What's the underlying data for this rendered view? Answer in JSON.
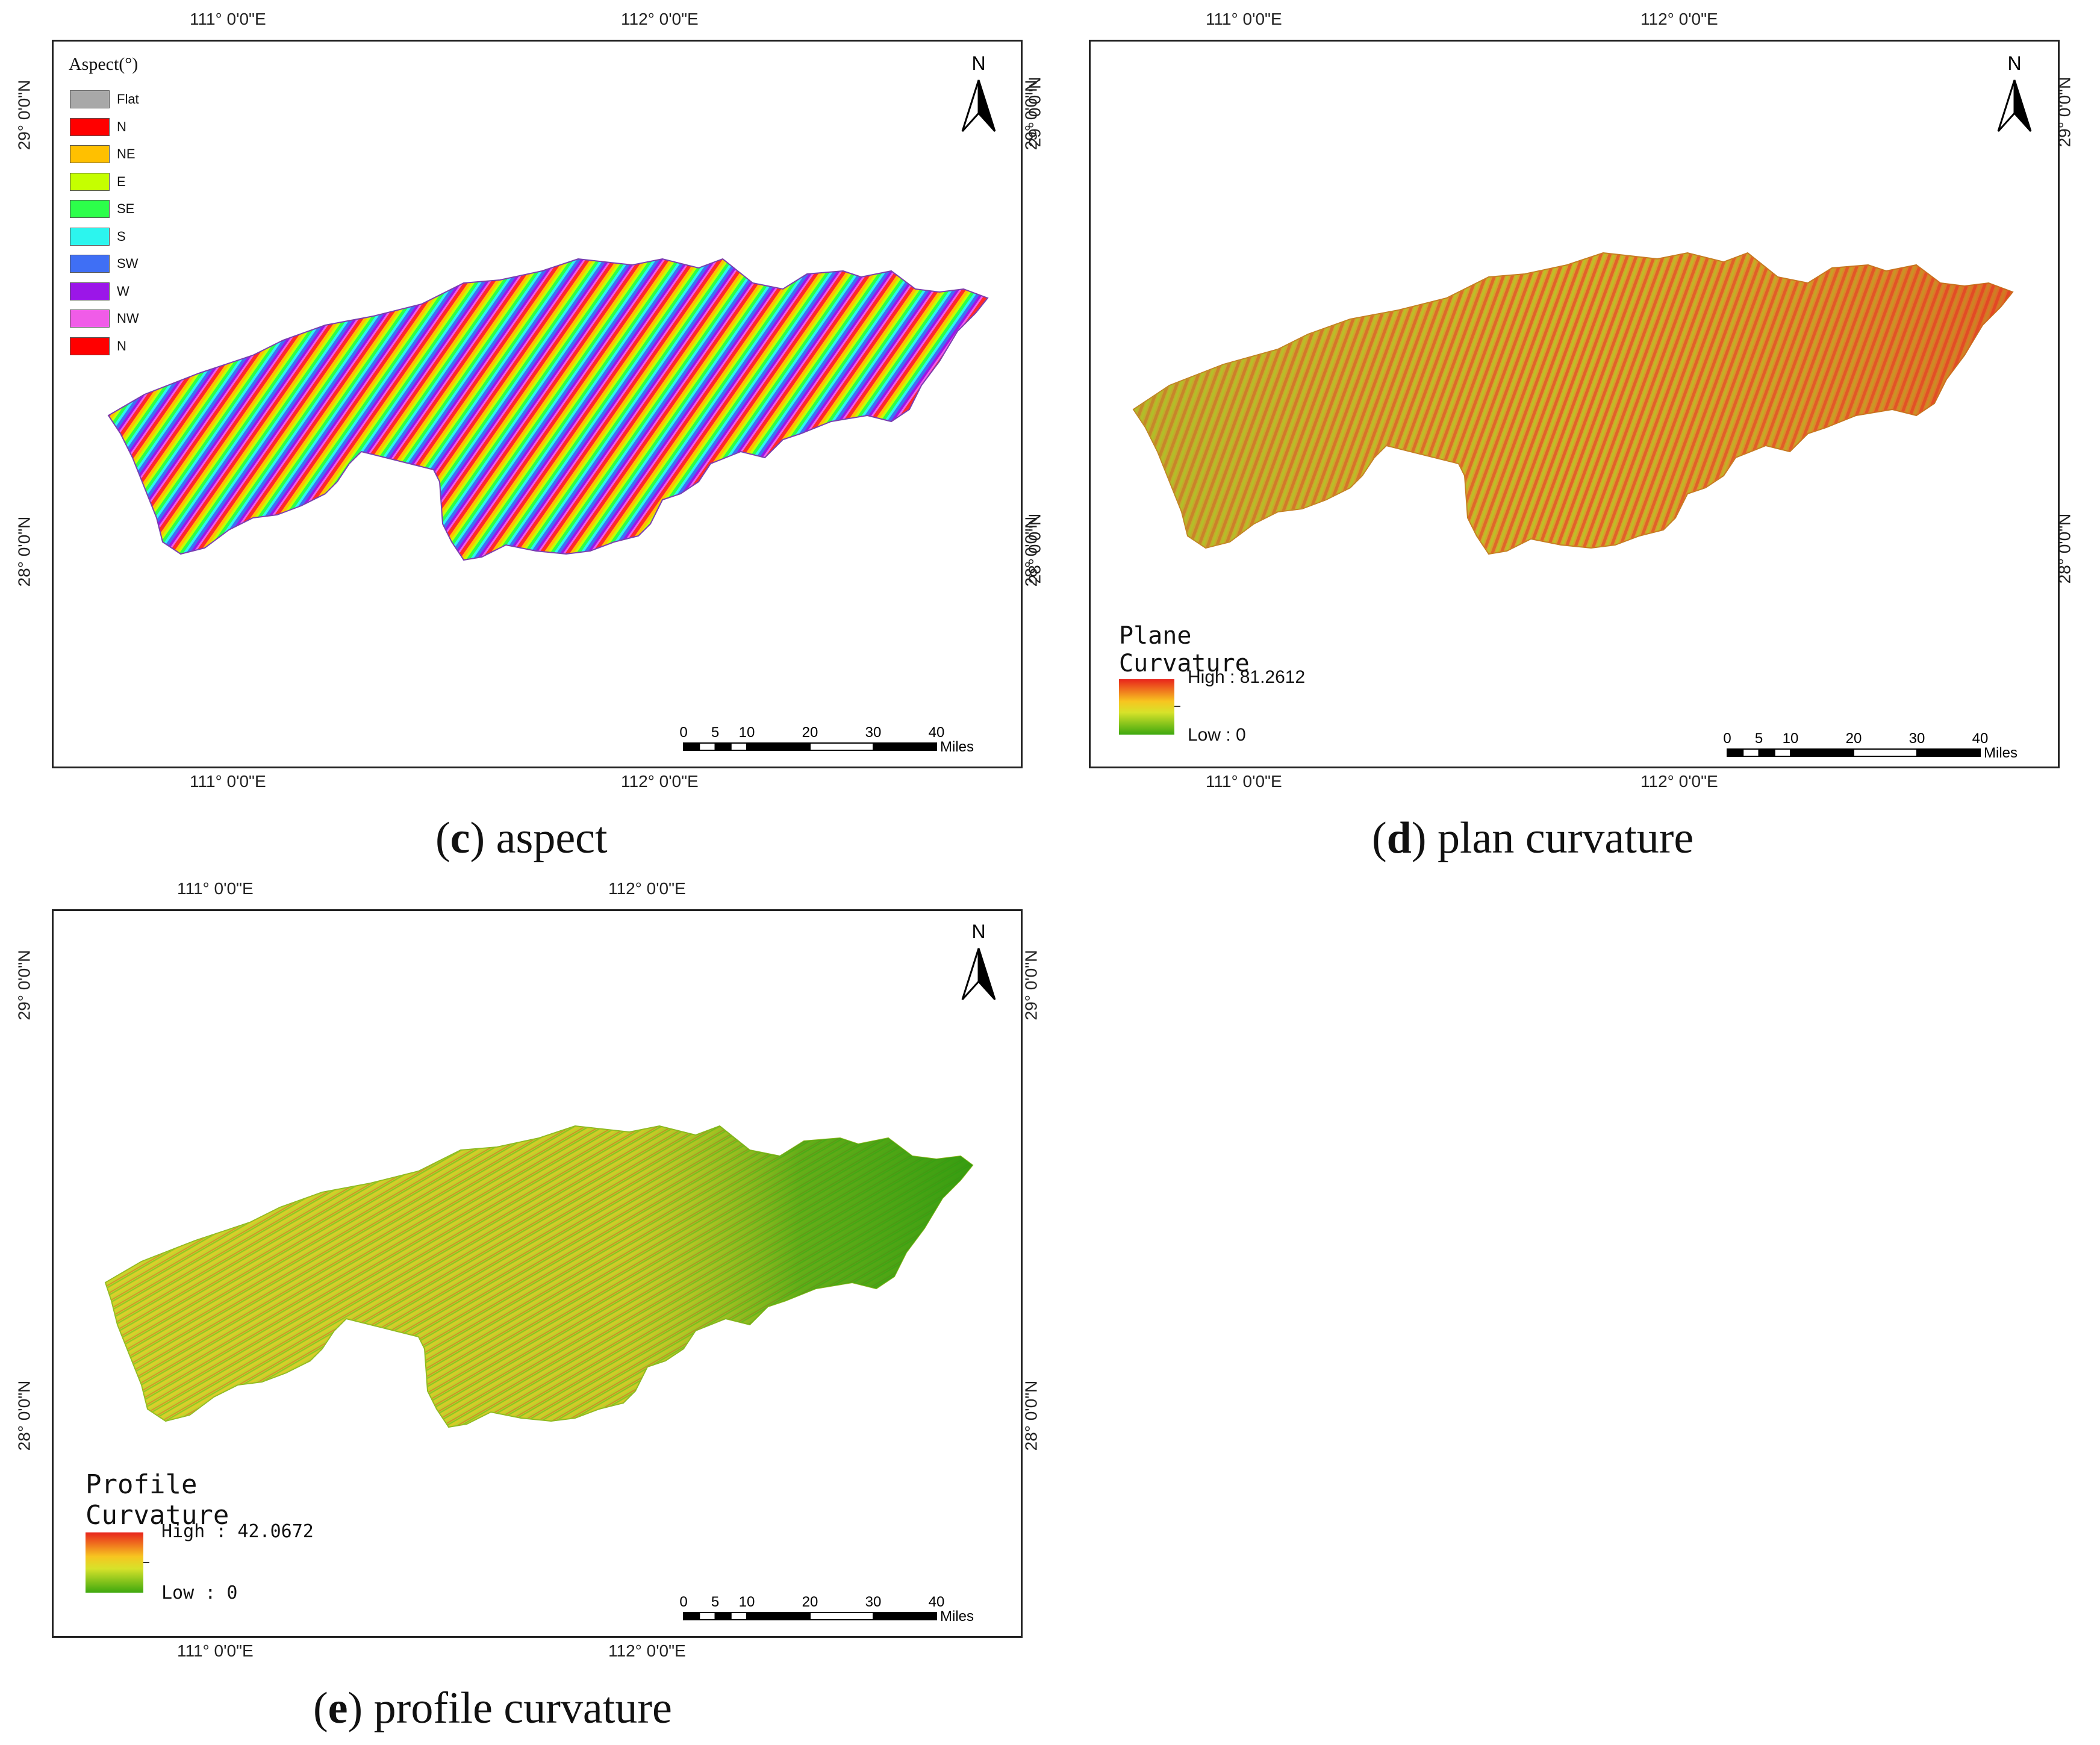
{
  "coords": {
    "lon111": "111° 0'0\"E",
    "lon112": "112° 0'0\"E",
    "lat29": "29° 0'0\"N",
    "lat28": "28° 0'0\"N"
  },
  "north_label": "N",
  "scale": {
    "ticks": [
      "0",
      "5",
      "10",
      "20",
      "30",
      "40"
    ],
    "unit": "Miles"
  },
  "panels": {
    "c": {
      "caption_letter": "c",
      "caption_text": "aspect",
      "legend_title": "Aspect(°)",
      "legend_items": [
        {
          "label": "Flat",
          "color": "#a8a8a8"
        },
        {
          "label": "N",
          "color": "#ff0000"
        },
        {
          "label": "NE",
          "color": "#ffc000"
        },
        {
          "label": "E",
          "color": "#c5ff00"
        },
        {
          "label": "SE",
          "color": "#2cff4a"
        },
        {
          "label": "S",
          "color": "#2cf5ee"
        },
        {
          "label": "SW",
          "color": "#3f6ff5"
        },
        {
          "label": "W",
          "color": "#9b16e8"
        },
        {
          "label": "NW",
          "color": "#f05ce8"
        },
        {
          "label": "N",
          "color": "#ff0000"
        }
      ]
    },
    "d": {
      "caption_letter": "d",
      "caption_text": "plan curvature",
      "legend_title": "Plane Curvature",
      "high": "High : 81.2612",
      "low": "Low : 0"
    },
    "e": {
      "caption_letter": "e",
      "caption_text": "profile curvature",
      "legend_title": "Profile Curvature",
      "high": "High : 42.0672",
      "low": "Low : 0"
    }
  }
}
